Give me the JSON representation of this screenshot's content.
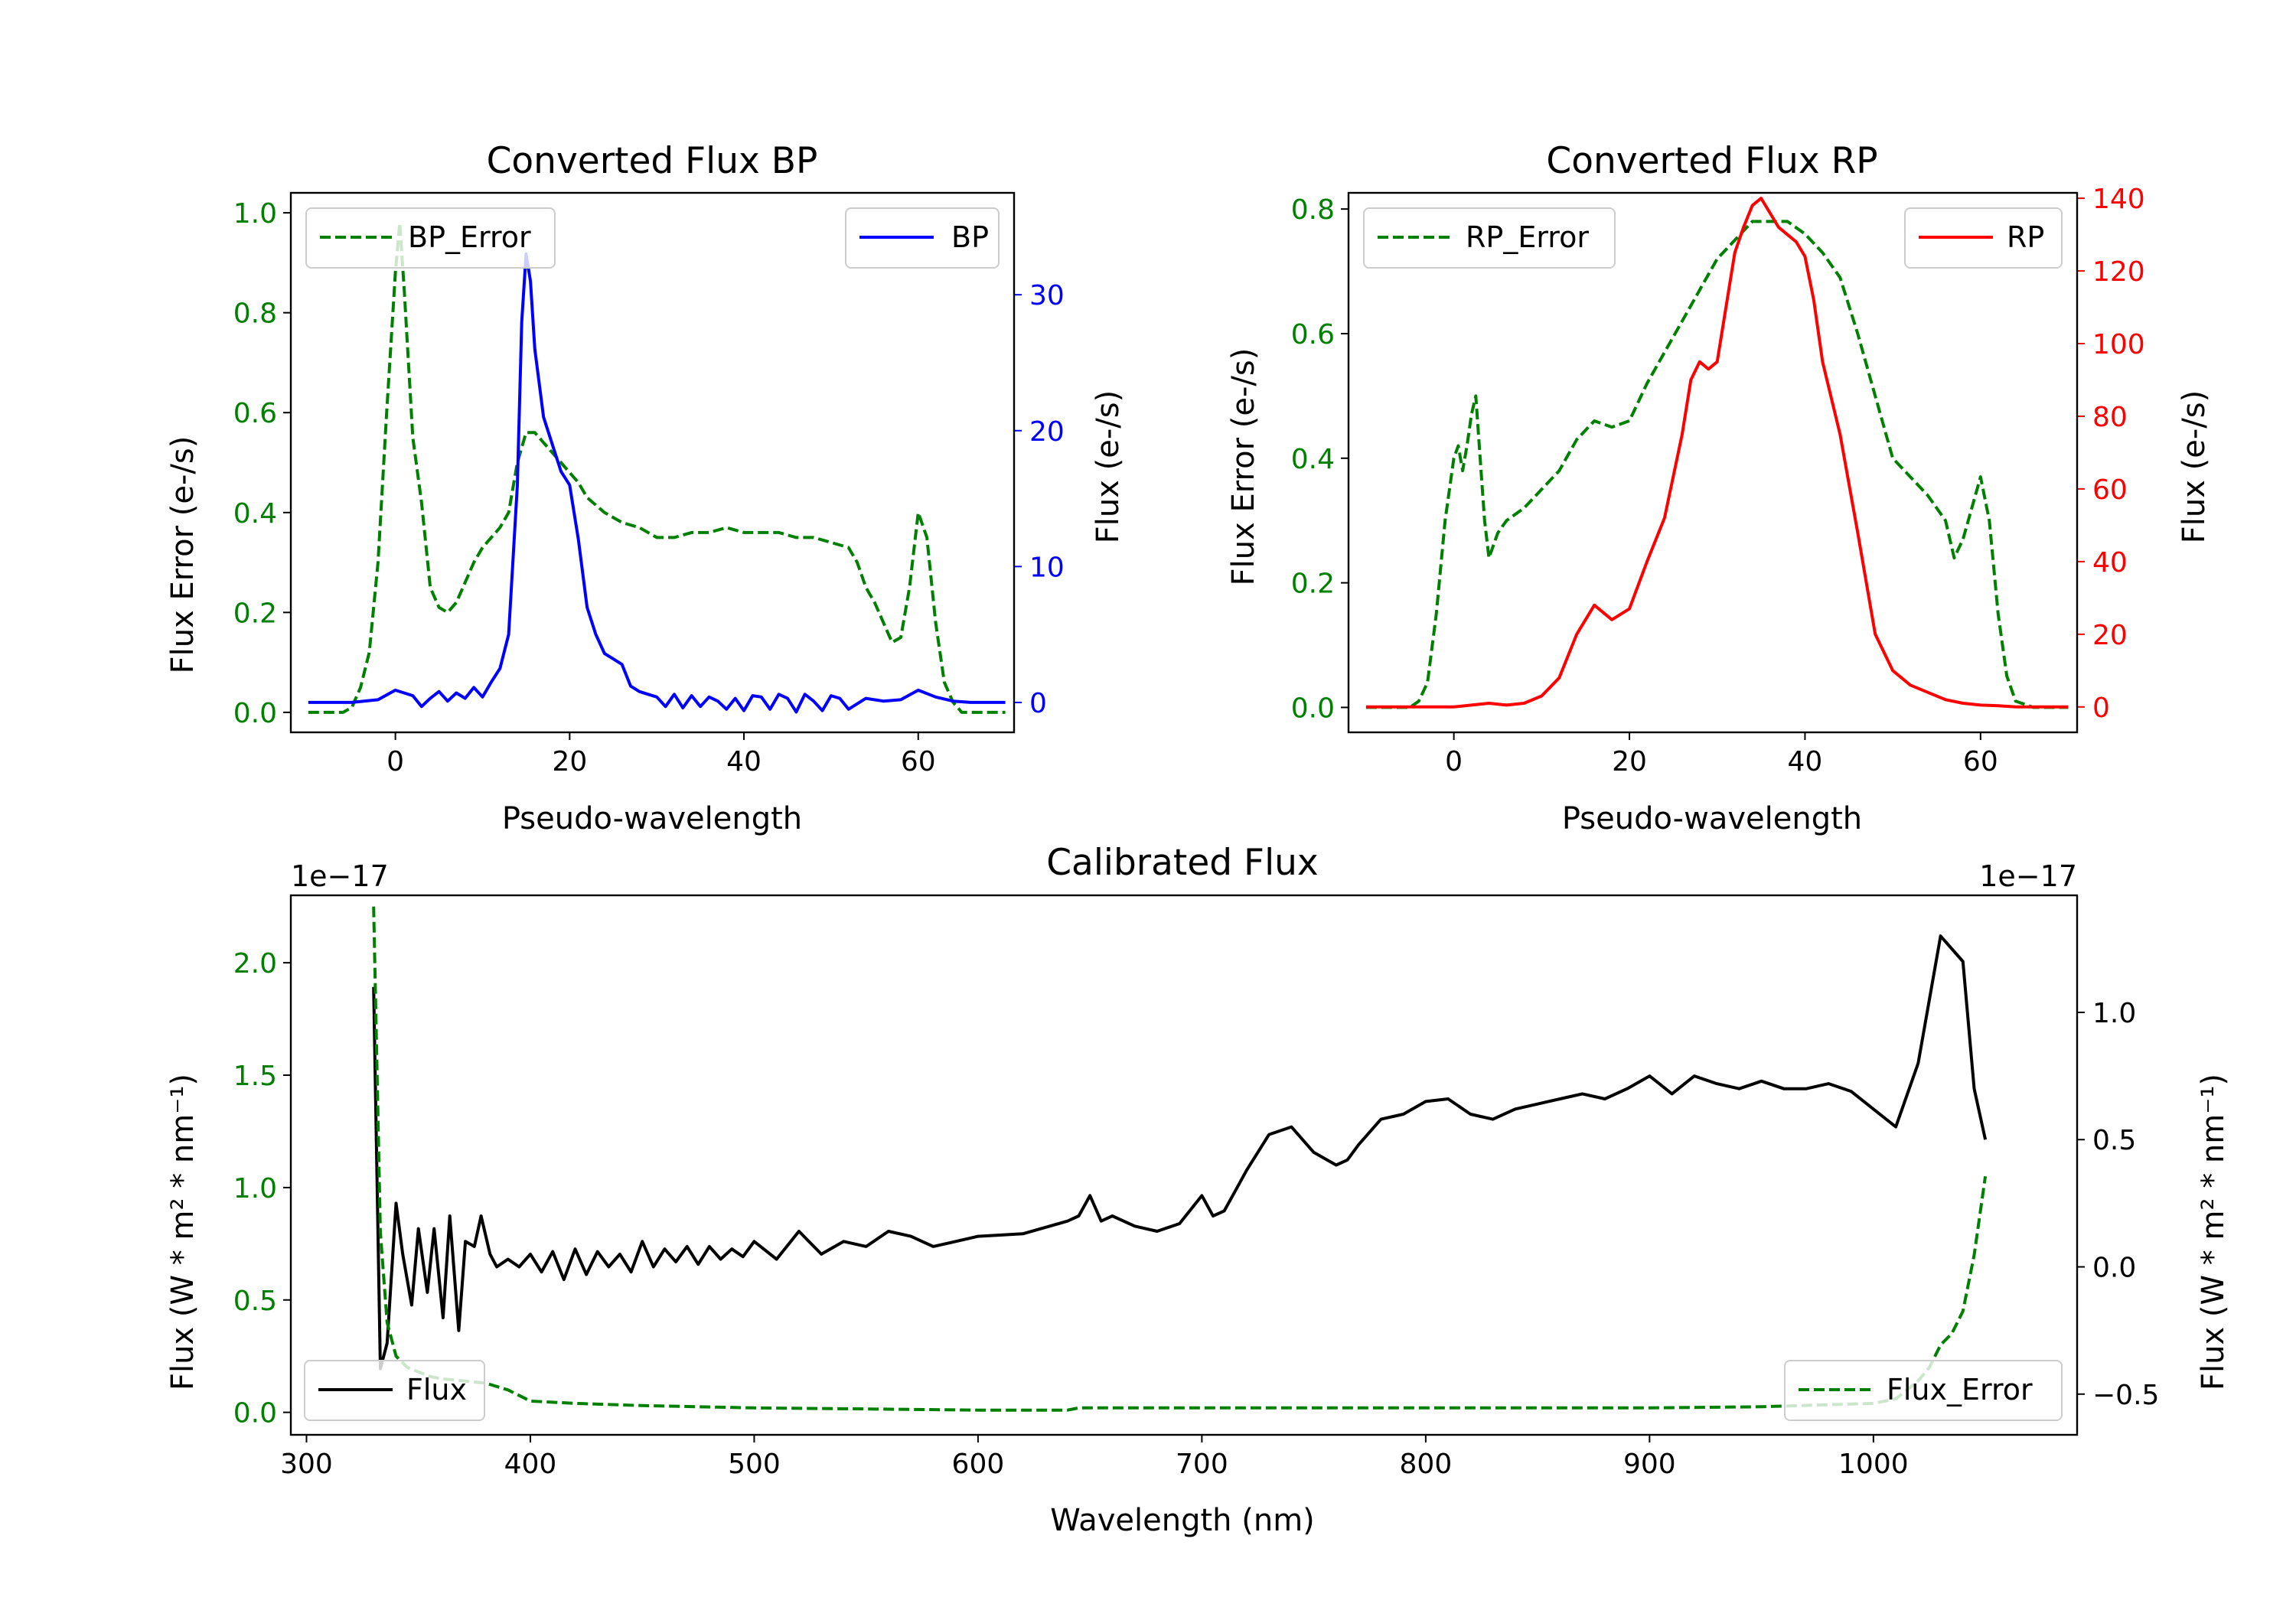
{
  "figure_colors": {
    "green": "#008000",
    "blue": "#0000ff",
    "red": "#ff0000",
    "black": "#000000"
  },
  "chart_data": [
    {
      "id": "bp",
      "type": "line",
      "title": "Converted Flux BP",
      "xlabel": "Pseudo-wavelength",
      "xlim": [
        -12,
        71
      ],
      "xticks": [
        0,
        20,
        40,
        60
      ],
      "ylabel_left": "Flux Error (e-/s)",
      "ylim_left": [
        -0.04,
        1.04
      ],
      "yticks_left": [
        "0.0",
        "0.2",
        "0.4",
        "0.6",
        "0.8",
        "1.0"
      ],
      "ylabel_right": "Flux (e-/s)",
      "ylim_right": [
        -2.2,
        37.5
      ],
      "yticks_right": [
        "0",
        "10",
        "20",
        "30"
      ],
      "series": [
        {
          "name": "BP_Error",
          "axis": "left",
          "style": "dashed",
          "color": "#008000",
          "legend": "upper-left",
          "x": [
            -10,
            -8,
            -6,
            -5,
            -4,
            -3,
            -2,
            -1,
            0,
            0.5,
            1,
            2,
            3,
            4,
            5,
            6,
            7,
            8,
            9,
            10,
            11,
            12,
            13,
            14,
            15,
            16,
            17,
            18,
            19,
            20,
            21,
            22,
            24,
            26,
            28,
            30,
            32,
            34,
            36,
            38,
            40,
            42,
            44,
            46,
            48,
            50,
            52,
            53,
            54,
            55,
            56,
            57,
            58,
            59,
            60,
            61,
            62,
            63,
            64,
            65,
            66,
            68,
            70
          ],
          "y": [
            0,
            0,
            0,
            0.01,
            0.05,
            0.12,
            0.3,
            0.6,
            0.88,
            0.98,
            0.85,
            0.55,
            0.42,
            0.25,
            0.21,
            0.2,
            0.22,
            0.26,
            0.3,
            0.33,
            0.35,
            0.37,
            0.4,
            0.5,
            0.56,
            0.56,
            0.54,
            0.52,
            0.5,
            0.48,
            0.46,
            0.43,
            0.4,
            0.38,
            0.37,
            0.35,
            0.35,
            0.36,
            0.36,
            0.37,
            0.36,
            0.36,
            0.36,
            0.35,
            0.35,
            0.34,
            0.33,
            0.3,
            0.25,
            0.22,
            0.18,
            0.14,
            0.15,
            0.25,
            0.4,
            0.35,
            0.18,
            0.06,
            0.02,
            0.0,
            0,
            0,
            0
          ]
        },
        {
          "name": "BP",
          "axis": "right",
          "style": "solid",
          "color": "#0000ff",
          "legend": "upper-right",
          "x": [
            -10,
            -5,
            -2,
            0,
            2,
            3,
            4,
            5,
            6,
            7,
            8,
            9,
            10,
            11,
            12,
            13,
            14,
            14.5,
            15,
            15.5,
            16,
            17,
            18,
            19,
            20,
            21,
            22,
            23,
            24,
            25,
            26,
            27,
            28,
            29,
            30,
            31,
            32,
            33,
            34,
            35,
            36,
            37,
            38,
            39,
            40,
            41,
            42,
            43,
            44,
            45,
            46,
            47,
            48,
            49,
            50,
            51,
            52,
            54,
            56,
            58,
            60,
            62,
            64,
            66,
            68,
            70
          ],
          "y": [
            0,
            0,
            0.2,
            0.9,
            0.5,
            -0.3,
            0.3,
            0.8,
            0.1,
            0.7,
            0.3,
            1.1,
            0.4,
            1.5,
            2.5,
            5,
            16,
            28,
            33,
            31,
            26,
            21,
            19,
            17,
            16,
            12,
            7,
            5,
            3.6,
            3.2,
            2.8,
            1.2,
            0.8,
            0.6,
            0.4,
            -0.3,
            0.6,
            -0.4,
            0.5,
            -0.3,
            0.4,
            0.1,
            -0.5,
            0.3,
            -0.6,
            0.5,
            0.4,
            -0.5,
            0.6,
            0.3,
            -0.7,
            0.6,
            0.1,
            -0.6,
            0.5,
            0.3,
            -0.5,
            0.3,
            0.1,
            0.2,
            0.9,
            0.4,
            0.1,
            0,
            0,
            0
          ]
        }
      ]
    },
    {
      "id": "rp",
      "type": "line",
      "title": "Converted Flux RP",
      "xlabel": "Pseudo-wavelength",
      "xlim": [
        -12,
        71
      ],
      "xticks": [
        0,
        20,
        40,
        60
      ],
      "ylabel_left": "Flux Error (e-/s)",
      "ylim_left": [
        -0.04,
        0.826
      ],
      "yticks_left": [
        "0.0",
        "0.2",
        "0.4",
        "0.6",
        "0.8"
      ],
      "ylabel_right": "Flux (e-/s)",
      "ylim_right": [
        -7,
        141.5
      ],
      "yticks_right": [
        "0",
        "20",
        "40",
        "60",
        "80",
        "100",
        "120",
        "140"
      ],
      "series": [
        {
          "name": "RP_Error",
          "axis": "left",
          "style": "dashed",
          "color": "#008000",
          "legend": "upper-left",
          "x": [
            -10,
            -5,
            -4,
            -3,
            -2,
            -1,
            0,
            0.5,
            1,
            1.5,
            2,
            2.5,
            3,
            3.5,
            4,
            5,
            6,
            8,
            10,
            12,
            14,
            16,
            18,
            20,
            22,
            24,
            26,
            28,
            30,
            32,
            34,
            36,
            38,
            40,
            42,
            44,
            46,
            48,
            50,
            52,
            54,
            56,
            57,
            58,
            59,
            60,
            61,
            62,
            63,
            64,
            66,
            70
          ],
          "y": [
            0,
            0,
            0.01,
            0.04,
            0.15,
            0.3,
            0.4,
            0.42,
            0.38,
            0.42,
            0.47,
            0.5,
            0.4,
            0.3,
            0.24,
            0.28,
            0.3,
            0.32,
            0.35,
            0.38,
            0.43,
            0.46,
            0.45,
            0.46,
            0.52,
            0.57,
            0.62,
            0.67,
            0.72,
            0.75,
            0.78,
            0.78,
            0.78,
            0.76,
            0.73,
            0.69,
            0.6,
            0.5,
            0.4,
            0.37,
            0.34,
            0.3,
            0.24,
            0.27,
            0.32,
            0.37,
            0.3,
            0.15,
            0.05,
            0.01,
            0,
            0
          ]
        },
        {
          "name": "RP",
          "axis": "right",
          "style": "solid",
          "color": "#ff0000",
          "legend": "upper-right",
          "x": [
            -10,
            -5,
            0,
            2,
            4,
            6,
            8,
            10,
            12,
            14,
            16,
            18,
            20,
            22,
            24,
            26,
            27,
            28,
            29,
            30,
            31,
            32,
            33,
            34,
            35,
            36,
            37,
            38,
            39,
            40,
            41,
            42,
            44,
            46,
            48,
            50,
            52,
            54,
            56,
            58,
            60,
            62,
            64,
            66,
            68,
            70
          ],
          "y": [
            0,
            0,
            0,
            0.5,
            1,
            0.5,
            1,
            3,
            8,
            20,
            28,
            24,
            27,
            40,
            52,
            75,
            90,
            95,
            93,
            95,
            110,
            125,
            132,
            138,
            140,
            136,
            132,
            130,
            128,
            124,
            112,
            95,
            75,
            48,
            20,
            10,
            6,
            4,
            2,
            1,
            0.5,
            0.3,
            0,
            0,
            0,
            0
          ]
        }
      ]
    },
    {
      "id": "cal",
      "type": "line",
      "title": "Calibrated Flux",
      "xlabel": "Wavelength (nm)",
      "xlim": [
        293,
        1091
      ],
      "xticks": [
        300,
        400,
        500,
        600,
        700,
        800,
        900,
        1000
      ],
      "ylabel_left": "Flux (W * m² * nm⁻¹)",
      "ylim_left": [
        -0.1,
        2.3
      ],
      "yticks_left": [
        "0.0",
        "0.5",
        "1.0",
        "1.5",
        "2.0"
      ],
      "multiplier_left": "1e−17",
      "ylabel_right": "Flux (W * m² * nm⁻¹)",
      "ylim_right": [
        -0.66,
        1.46
      ],
      "yticks_right": [
        "−0.5",
        "0.0",
        "0.5",
        "1.0"
      ],
      "multiplier_right": "1e−17",
      "series": [
        {
          "name": "Flux",
          "axis": "right",
          "style": "solid",
          "color": "#000000",
          "legend": "lower-left",
          "x": [
            330,
            333,
            336,
            340,
            343,
            347,
            350,
            354,
            357,
            361,
            364,
            368,
            371,
            375,
            378,
            382,
            385,
            390,
            395,
            400,
            405,
            410,
            415,
            420,
            425,
            430,
            435,
            440,
            445,
            450,
            455,
            460,
            465,
            470,
            475,
            480,
            485,
            490,
            495,
            500,
            510,
            520,
            530,
            540,
            550,
            560,
            570,
            580,
            590,
            600,
            620,
            640,
            645,
            650,
            655,
            660,
            670,
            680,
            690,
            700,
            705,
            710,
            715,
            720,
            730,
            740,
            750,
            760,
            765,
            770,
            780,
            790,
            800,
            810,
            820,
            830,
            840,
            850,
            860,
            870,
            880,
            890,
            900,
            910,
            920,
            930,
            940,
            950,
            960,
            970,
            980,
            990,
            1000,
            1010,
            1020,
            1030,
            1040,
            1045,
            1050
          ],
          "y": [
            1.1,
            -0.4,
            -0.3,
            0.25,
            0.05,
            -0.15,
            0.15,
            -0.1,
            0.15,
            -0.2,
            0.2,
            -0.25,
            0.1,
            0.08,
            0.2,
            0.05,
            0,
            0.03,
            0.0,
            0.05,
            -0.02,
            0.06,
            -0.05,
            0.07,
            -0.03,
            0.06,
            0.0,
            0.05,
            -0.02,
            0.1,
            0.0,
            0.07,
            0.02,
            0.08,
            0.01,
            0.08,
            0.03,
            0.07,
            0.04,
            0.1,
            0.03,
            0.14,
            0.05,
            0.1,
            0.08,
            0.14,
            0.12,
            0.08,
            0.1,
            0.12,
            0.13,
            0.18,
            0.2,
            0.28,
            0.18,
            0.2,
            0.16,
            0.14,
            0.17,
            0.28,
            0.2,
            0.22,
            0.3,
            0.38,
            0.52,
            0.55,
            0.45,
            0.4,
            0.42,
            0.48,
            0.58,
            0.6,
            0.65,
            0.66,
            0.6,
            0.58,
            0.62,
            0.64,
            0.66,
            0.68,
            0.66,
            0.7,
            0.75,
            0.68,
            0.75,
            0.72,
            0.7,
            0.73,
            0.7,
            0.7,
            0.72,
            0.69,
            0.62,
            0.55,
            0.8,
            1.3,
            1.2,
            0.7,
            0.5
          ]
        },
        {
          "name": "Flux_Error",
          "axis": "left",
          "style": "dashed",
          "color": "#008000",
          "legend": "lower-right",
          "x": [
            330,
            333,
            336,
            340,
            345,
            350,
            355,
            360,
            370,
            380,
            390,
            400,
            420,
            450,
            500,
            550,
            600,
            640,
            645,
            700,
            800,
            900,
            950,
            1000,
            1010,
            1015,
            1020,
            1025,
            1030,
            1035,
            1040,
            1045,
            1050
          ],
          "y": [
            2.25,
            0.8,
            0.4,
            0.25,
            0.2,
            0.18,
            0.16,
            0.15,
            0.14,
            0.13,
            0.1,
            0.05,
            0.04,
            0.03,
            0.02,
            0.015,
            0.01,
            0.01,
            0.02,
            0.02,
            0.02,
            0.02,
            0.025,
            0.04,
            0.06,
            0.1,
            0.14,
            0.2,
            0.3,
            0.35,
            0.45,
            0.7,
            1.05
          ]
        }
      ]
    }
  ]
}
